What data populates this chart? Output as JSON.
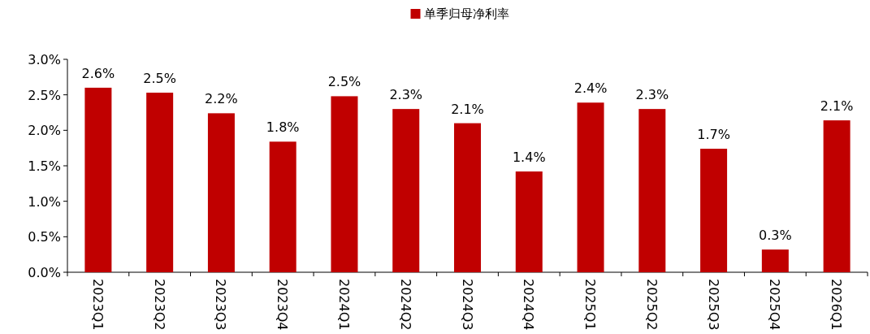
{
  "chart_data": {
    "type": "bar",
    "categories": [
      "2023Q1",
      "2023Q2",
      "2023Q3",
      "2023Q4",
      "2024Q1",
      "2024Q2",
      "2024Q3",
      "2024Q4",
      "2025Q1",
      "2025Q2",
      "2025Q3",
      "2025Q4",
      "2026Q1"
    ],
    "series": [
      {
        "name": "单季归母净利率",
        "color": "#c00000",
        "values": [
          2.6,
          2.53,
          2.24,
          1.84,
          2.48,
          2.3,
          2.1,
          1.42,
          2.39,
          2.3,
          1.74,
          0.32,
          2.14
        ],
        "value_labels": [
          "2.6%",
          "2.5%",
          "2.2%",
          "1.8%",
          "2.5%",
          "2.3%",
          "2.1%",
          "1.4%",
          "2.4%",
          "2.3%",
          "1.7%",
          "0.3%",
          "2.1%"
        ]
      }
    ],
    "ylim": [
      0,
      3.0
    ],
    "yticks": [
      {
        "value": 0,
        "label": "0.0%"
      },
      {
        "value": 0.5,
        "label": "0.5%"
      },
      {
        "value": 1.0,
        "label": "1.0%"
      },
      {
        "value": 1.5,
        "label": "1.5%"
      },
      {
        "value": 2.0,
        "label": "2.0%"
      },
      {
        "value": 2.5,
        "label": "2.5%"
      },
      {
        "value": 3.0,
        "label": "3.0%"
      }
    ],
    "legend": "top",
    "grid": false
  }
}
